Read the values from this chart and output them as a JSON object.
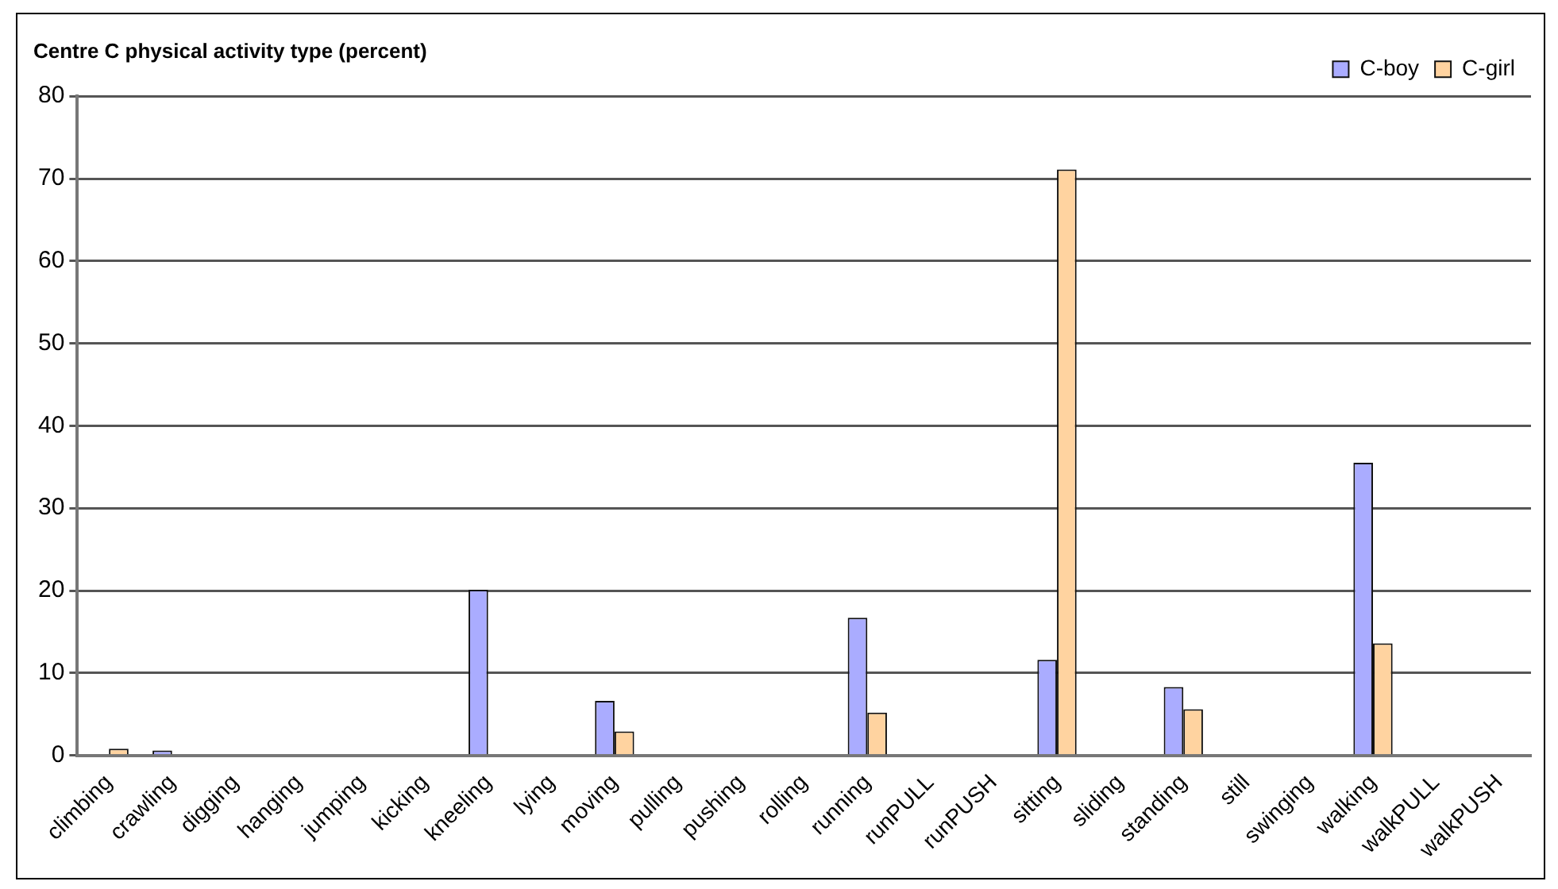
{
  "chart_data": {
    "type": "bar",
    "title": "Centre C physical activity type (percent)",
    "categories": [
      "climbing",
      "crawling",
      "digging",
      "hanging",
      "jumping",
      "kicking",
      "kneeling",
      "lying",
      "moving",
      "pulling",
      "pushing",
      "rolling",
      "running",
      "runPULL",
      "runPUSH",
      "sitting",
      "sliding",
      "standing",
      "still",
      "swinging",
      "walking",
      "walkPULL",
      "walkPUSH"
    ],
    "series": [
      {
        "name": "C-boy",
        "color": "#aaacff",
        "values": [
          0,
          0.6,
          0,
          0,
          0,
          0,
          20.1,
          0,
          6.6,
          0,
          0,
          0,
          16.7,
          0,
          0,
          11.6,
          0,
          8.3,
          0,
          0,
          35.5,
          0,
          0
        ]
      },
      {
        "name": "C-girl",
        "color": "#ffd3a0",
        "values": [
          0.8,
          0,
          0,
          0,
          0,
          0,
          0,
          0,
          2.9,
          0,
          0,
          0,
          5.2,
          0,
          0,
          71.1,
          0,
          5.6,
          0,
          0,
          13.6,
          0,
          0
        ]
      }
    ],
    "ylim": [
      0,
      80
    ],
    "yticks": [
      0,
      10,
      20,
      30,
      40,
      50,
      60,
      70,
      80
    ],
    "grid": "y",
    "legend": "top right"
  }
}
